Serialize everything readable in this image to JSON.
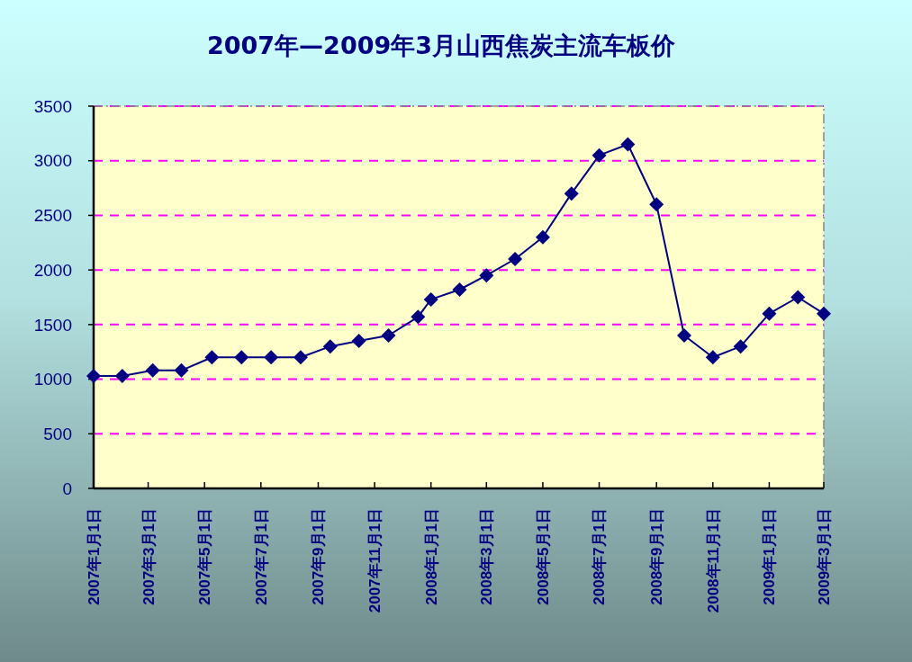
{
  "chart_data": {
    "type": "line",
    "title": "2007年—2009年3月山西焦炭主流车板价",
    "x": [
      "2007-01-01",
      "2007-02-01",
      "2007-03-06",
      "2007-04-06",
      "2007-05-09",
      "2007-06-10",
      "2007-07-12",
      "2007-08-13",
      "2007-09-14",
      "2007-10-15",
      "2007-11-16",
      "2007-12-18",
      "2008-01-01",
      "2008-02-01",
      "2008-03-01",
      "2008-04-01",
      "2008-05-01",
      "2008-06-01",
      "2008-07-01",
      "2008-08-01",
      "2008-09-01",
      "2008-10-01",
      "2008-11-01",
      "2008-12-01",
      "2009-01-01",
      "2009-02-01",
      "2009-03-01"
    ],
    "series": [
      {
        "color": "#000080",
        "values": [
          1030,
          1030,
          1080,
          1080,
          1200,
          1200,
          1200,
          1200,
          1300,
          1350,
          1400,
          1570,
          1730,
          1820,
          1950,
          2100,
          2300,
          2700,
          3050,
          3150,
          2600,
          1400,
          1200,
          1300,
          1600,
          1750,
          1600
        ]
      }
    ],
    "xlim": [
      "2007-01-01",
      "2009-03-01"
    ],
    "xticks": [
      {
        "value": "2007-01-01",
        "label": "2007年1月1日"
      },
      {
        "value": "2007-03-01",
        "label": "2007年3月1日"
      },
      {
        "value": "2007-05-01",
        "label": "2007年5月1日"
      },
      {
        "value": "2007-07-01",
        "label": "2007年7月1日"
      },
      {
        "value": "2007-09-01",
        "label": "2007年9月1日"
      },
      {
        "value": "2007-11-01",
        "label": "2007年11月1日"
      },
      {
        "value": "2008-01-01",
        "label": "2008年1月1日"
      },
      {
        "value": "2008-03-01",
        "label": "2008年3月1日"
      },
      {
        "value": "2008-05-01",
        "label": "2008年5月1日"
      },
      {
        "value": "2008-07-01",
        "label": "2008年7月1日"
      },
      {
        "value": "2008-09-01",
        "label": "2008年9月1日"
      },
      {
        "value": "2008-11-01",
        "label": "2008年11月1日"
      },
      {
        "value": "2009-01-01",
        "label": "2009年1月1日"
      },
      {
        "value": "2009-03-01",
        "label": "2009年3月1日"
      }
    ],
    "ylim": [
      0,
      3500
    ],
    "yticks": [
      0,
      500,
      1000,
      1500,
      2000,
      2500,
      3000,
      3500
    ],
    "grid": "y",
    "marker": "diamond",
    "line_style": "solid"
  }
}
